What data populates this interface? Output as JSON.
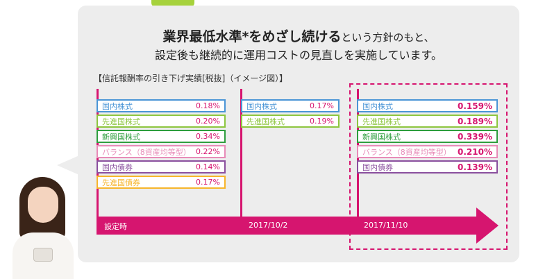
{
  "headline": {
    "line1_bold": "業界最低水準*をめざし続ける",
    "line1_rest": "という方針のもと、",
    "line2": "設定後も継続的に運用コストの見直しを実施しています。"
  },
  "section_label": "【信託報酬率の引き下げ実績[税抜]（イメージ図）】",
  "colors": {
    "accent": "#d6156f",
    "bubble": "#ededed"
  },
  "stages": [
    {
      "label": "設定時",
      "rows": [
        {
          "name": "国内株式",
          "value": "0.18%",
          "color": "#4a95d6"
        },
        {
          "name": "先進国株式",
          "value": "0.20%",
          "color": "#8dc63f"
        },
        {
          "name": "新興国株式",
          "value": "0.34%",
          "color": "#2e9e3e"
        },
        {
          "name": "バランス（8資産均等型）",
          "value": "0.22%",
          "color": "#e88bb8"
        },
        {
          "name": "国内債券",
          "value": "0.14%",
          "color": "#8a4f9e"
        },
        {
          "name": "先進国債券",
          "value": "0.17%",
          "color": "#f7b52b"
        }
      ]
    },
    {
      "label": "2017/10/2",
      "rows": [
        {
          "name": "国内株式",
          "value": "0.17%",
          "color": "#4a95d6"
        },
        {
          "name": "先進国株式",
          "value": "0.19%",
          "color": "#8dc63f"
        }
      ]
    },
    {
      "label": "2017/11/10",
      "rows": [
        {
          "name": "国内株式",
          "value": "0.159%",
          "color": "#4a95d6"
        },
        {
          "name": "先進国株式",
          "value": "0.189%",
          "color": "#8dc63f"
        },
        {
          "name": "新興国株式",
          "value": "0.339%",
          "color": "#2e9e3e"
        },
        {
          "name": "バランス（8資産均等型）",
          "value": "0.210%",
          "color": "#e88bb8"
        },
        {
          "name": "国内債券",
          "value": "0.139%",
          "color": "#8a4f9e"
        }
      ]
    }
  ]
}
